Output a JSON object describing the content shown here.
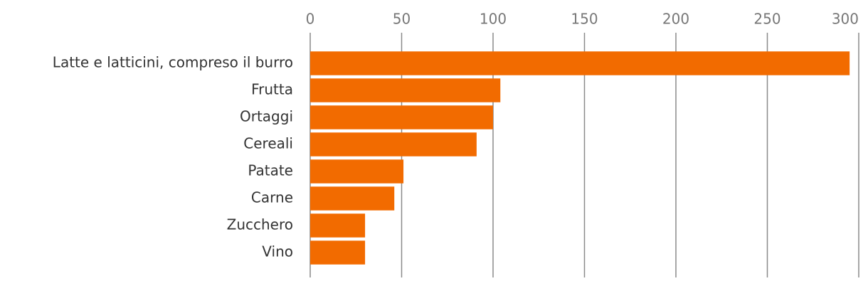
{
  "chart_data": {
    "type": "bar",
    "orientation": "horizontal",
    "categories": [
      "Latte e latticini, compreso il burro",
      "Frutta",
      "Ortaggi",
      "Cereali",
      "Patate",
      "Carne",
      "Zucchero",
      "Vino"
    ],
    "values": [
      295,
      104,
      100,
      91,
      51,
      46,
      30,
      30
    ],
    "color": "#f26b00",
    "xlim": [
      0,
      300
    ],
    "xticks": [
      0,
      50,
      100,
      150,
      200,
      250,
      300
    ],
    "grid": true
  }
}
